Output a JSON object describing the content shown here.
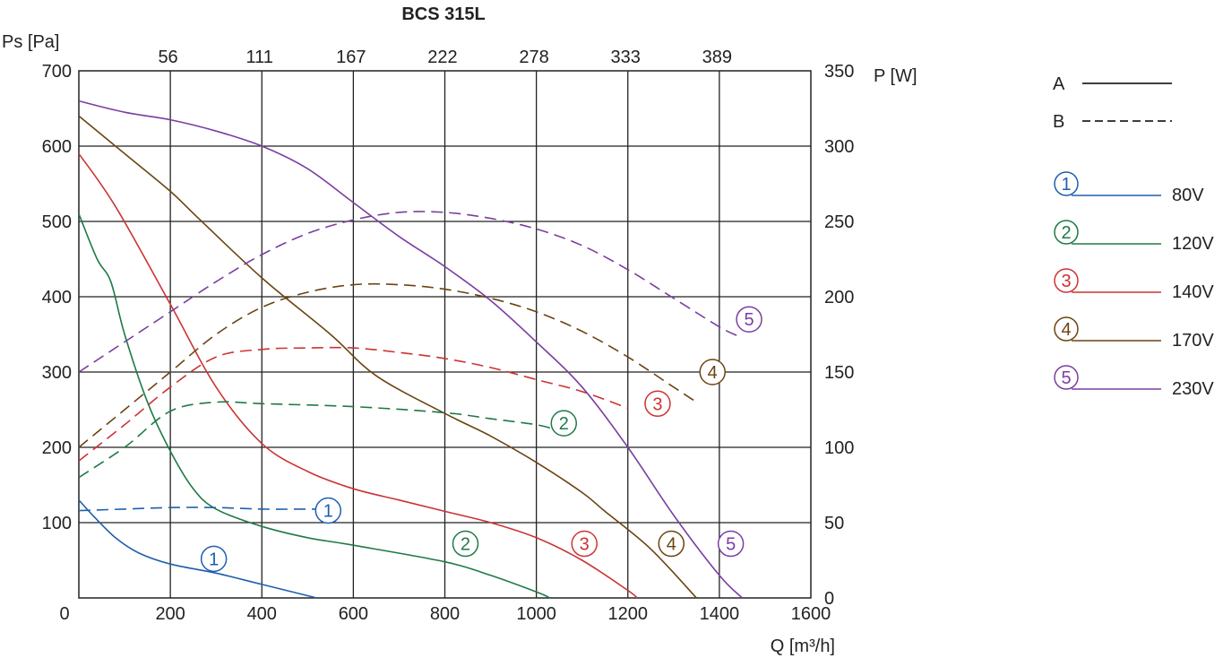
{
  "chart_data": {
    "type": "line",
    "title": "BCS 315L",
    "xlabel": "Q [m³/h]",
    "ylabel_left": "Ps [Pa]",
    "ylabel_right": "P [W]",
    "xlim": [
      0,
      1600
    ],
    "ylim_left": [
      0,
      700
    ],
    "ylim_right": [
      0,
      350
    ],
    "grid": true,
    "x_ticks": [
      "0",
      "200",
      "400",
      "600",
      "800",
      "1000",
      "1200",
      "1400",
      "1600"
    ],
    "y_ticks_left": [
      "100",
      "200",
      "300",
      "400",
      "500",
      "600",
      "700"
    ],
    "y_ticks_right": [
      "0",
      "50",
      "100",
      "150",
      "200",
      "250",
      "300",
      "350"
    ],
    "top_ticks": [
      "56",
      "111",
      "167",
      "222",
      "278",
      "333",
      "389"
    ],
    "legend": {
      "placement": "right",
      "line_types": [
        {
          "label": "A",
          "style": "solid"
        },
        {
          "label": "B",
          "style": "dashed"
        }
      ],
      "entries": [
        {
          "marker": "1",
          "label": "80V",
          "color": "#1f5fae"
        },
        {
          "marker": "2",
          "label": "120V",
          "color": "#1e7a46"
        },
        {
          "marker": "3",
          "label": "140V",
          "color": "#cc3333"
        },
        {
          "marker": "4",
          "label": "170V",
          "color": "#6b4410"
        },
        {
          "marker": "5",
          "label": "230V",
          "color": "#7a3ea0"
        }
      ]
    },
    "series": [
      {
        "marker": "1",
        "curve": "A",
        "axis": "left",
        "color": "#1f5fae",
        "points": [
          [
            0,
            130
          ],
          [
            30,
            110
          ],
          [
            80,
            80
          ],
          [
            130,
            60
          ],
          [
            200,
            45
          ],
          [
            300,
            33
          ],
          [
            400,
            18
          ],
          [
            520,
            0
          ]
        ]
      },
      {
        "marker": "2",
        "curve": "A",
        "axis": "left",
        "color": "#1e7a46",
        "points": [
          [
            0,
            510
          ],
          [
            40,
            450
          ],
          [
            70,
            420
          ],
          [
            100,
            350
          ],
          [
            150,
            260
          ],
          [
            200,
            195
          ],
          [
            250,
            145
          ],
          [
            300,
            118
          ],
          [
            400,
            95
          ],
          [
            500,
            80
          ],
          [
            600,
            70
          ],
          [
            800,
            48
          ],
          [
            900,
            30
          ],
          [
            1000,
            8
          ],
          [
            1030,
            0
          ]
        ]
      },
      {
        "marker": "3",
        "curve": "A",
        "axis": "left",
        "color": "#cc3333",
        "points": [
          [
            0,
            590
          ],
          [
            80,
            520
          ],
          [
            200,
            390
          ],
          [
            300,
            280
          ],
          [
            400,
            205
          ],
          [
            500,
            168
          ],
          [
            600,
            145
          ],
          [
            700,
            130
          ],
          [
            800,
            115
          ],
          [
            900,
            100
          ],
          [
            1000,
            80
          ],
          [
            1100,
            50
          ],
          [
            1200,
            10
          ],
          [
            1220,
            0
          ]
        ]
      },
      {
        "marker": "4",
        "curve": "A",
        "axis": "left",
        "color": "#6b4410",
        "points": [
          [
            0,
            640
          ],
          [
            100,
            590
          ],
          [
            200,
            540
          ],
          [
            260,
            505
          ],
          [
            400,
            425
          ],
          [
            550,
            350
          ],
          [
            650,
            295
          ],
          [
            800,
            245
          ],
          [
            900,
            215
          ],
          [
            1000,
            180
          ],
          [
            1100,
            140
          ],
          [
            1150,
            115
          ],
          [
            1250,
            65
          ],
          [
            1350,
            0
          ]
        ]
      },
      {
        "marker": "5",
        "curve": "A",
        "axis": "left",
        "color": "#7a3ea0",
        "points": [
          [
            0,
            660
          ],
          [
            100,
            645
          ],
          [
            200,
            635
          ],
          [
            300,
            620
          ],
          [
            400,
            600
          ],
          [
            500,
            570
          ],
          [
            600,
            525
          ],
          [
            700,
            480
          ],
          [
            800,
            440
          ],
          [
            900,
            395
          ],
          [
            1000,
            340
          ],
          [
            1100,
            280
          ],
          [
            1200,
            200
          ],
          [
            1300,
            110
          ],
          [
            1400,
            30
          ],
          [
            1450,
            0
          ]
        ]
      },
      {
        "marker": "1",
        "curve": "B",
        "axis": "right",
        "color": "#1f5fae",
        "points": [
          [
            0,
            58
          ],
          [
            100,
            59
          ],
          [
            200,
            60
          ],
          [
            300,
            60
          ],
          [
            400,
            59
          ],
          [
            500,
            59
          ],
          [
            520,
            59
          ]
        ]
      },
      {
        "marker": "2",
        "curve": "B",
        "axis": "right",
        "color": "#1e7a46",
        "points": [
          [
            0,
            80
          ],
          [
            100,
            100
          ],
          [
            200,
            124
          ],
          [
            300,
            130
          ],
          [
            400,
            129
          ],
          [
            600,
            127
          ],
          [
            800,
            123
          ],
          [
            900,
            119
          ],
          [
            1000,
            115
          ],
          [
            1050,
            111
          ]
        ]
      },
      {
        "marker": "3",
        "curve": "B",
        "axis": "right",
        "color": "#cc3333",
        "points": [
          [
            0,
            91
          ],
          [
            100,
            115
          ],
          [
            200,
            140
          ],
          [
            300,
            160
          ],
          [
            400,
            165
          ],
          [
            500,
            166
          ],
          [
            600,
            166
          ],
          [
            700,
            163
          ],
          [
            800,
            159
          ],
          [
            900,
            153
          ],
          [
            1000,
            145
          ],
          [
            1100,
            137
          ],
          [
            1200,
            126
          ]
        ]
      },
      {
        "marker": "4",
        "curve": "B",
        "axis": "right",
        "color": "#6b4410",
        "points": [
          [
            0,
            100
          ],
          [
            100,
            125
          ],
          [
            200,
            150
          ],
          [
            300,
            175
          ],
          [
            400,
            193
          ],
          [
            500,
            203
          ],
          [
            600,
            208
          ],
          [
            700,
            208
          ],
          [
            800,
            205
          ],
          [
            900,
            199
          ],
          [
            1000,
            190
          ],
          [
            1100,
            177
          ],
          [
            1200,
            160
          ],
          [
            1300,
            140
          ],
          [
            1350,
            130
          ]
        ]
      },
      {
        "marker": "5",
        "curve": "B",
        "axis": "right",
        "color": "#7a3ea0",
        "points": [
          [
            0,
            150
          ],
          [
            100,
            170
          ],
          [
            200,
            190
          ],
          [
            300,
            210
          ],
          [
            400,
            228
          ],
          [
            500,
            242
          ],
          [
            600,
            251
          ],
          [
            700,
            256
          ],
          [
            800,
            256
          ],
          [
            900,
            252
          ],
          [
            1000,
            245
          ],
          [
            1100,
            234
          ],
          [
            1200,
            218
          ],
          [
            1300,
            199
          ],
          [
            1400,
            180
          ],
          [
            1440,
            174
          ]
        ]
      }
    ],
    "markers": [
      {
        "marker": "1",
        "x": 545,
        "y": 116,
        "axis": "left",
        "color": "#1f5fae"
      },
      {
        "marker": "1",
        "x": 295,
        "y": 52,
        "axis": "left",
        "color": "#1f5fae"
      },
      {
        "marker": "2",
        "x": 1060,
        "y": 232,
        "axis": "left",
        "color": "#1e7a46"
      },
      {
        "marker": "2",
        "x": 845,
        "y": 72,
        "axis": "left",
        "color": "#1e7a46"
      },
      {
        "marker": "3",
        "x": 1265,
        "y": 258,
        "axis": "left",
        "color": "#cc3333"
      },
      {
        "marker": "3",
        "x": 1105,
        "y": 72,
        "axis": "left",
        "color": "#cc3333"
      },
      {
        "marker": "4",
        "x": 1385,
        "y": 300,
        "axis": "left",
        "color": "#6b4410"
      },
      {
        "marker": "4",
        "x": 1295,
        "y": 72,
        "axis": "left",
        "color": "#6b4410"
      },
      {
        "marker": "5",
        "x": 1465,
        "y": 370,
        "axis": "left",
        "color": "#7a3ea0"
      },
      {
        "marker": "5",
        "x": 1425,
        "y": 72,
        "axis": "left",
        "color": "#7a3ea0"
      }
    ]
  }
}
